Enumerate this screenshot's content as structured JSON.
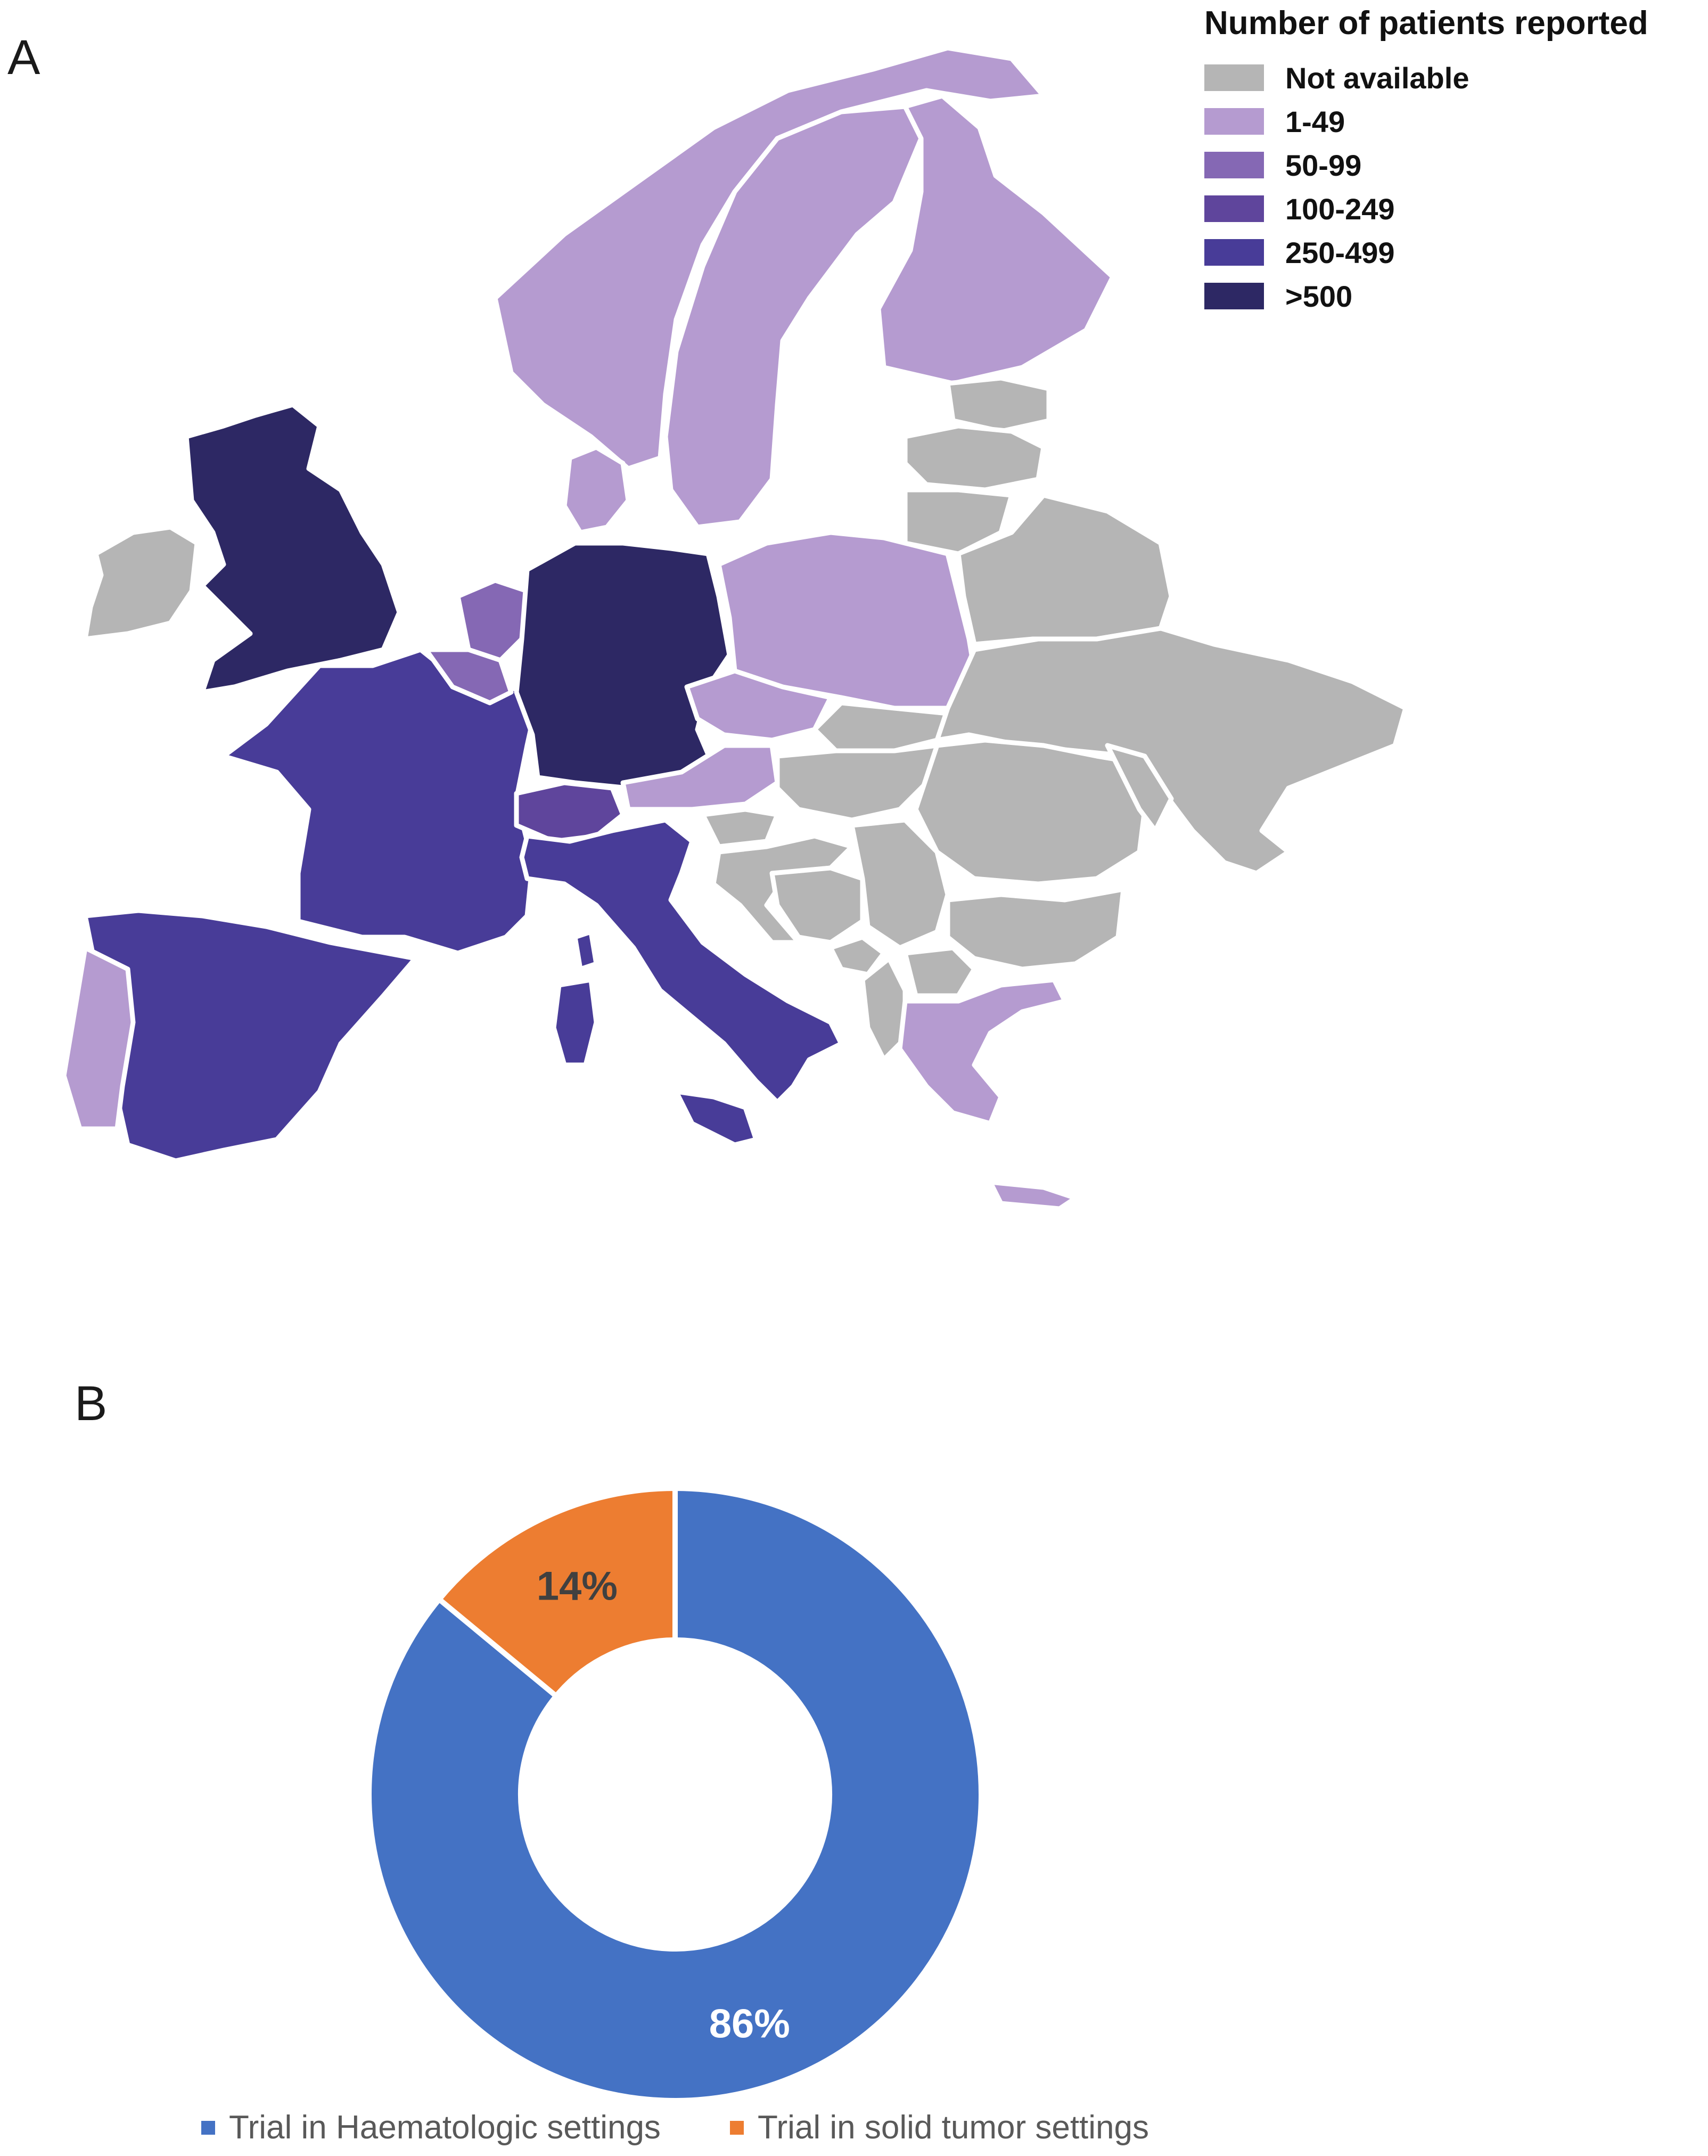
{
  "panel_a": {
    "letter": "A",
    "legend": {
      "title": "Number of patients reported",
      "items": [
        {
          "label": "Not available",
          "color": "#b5b5b5"
        },
        {
          "label": "1-49",
          "color": "#b59bd0"
        },
        {
          "label": "50-99",
          "color": "#8568b4"
        },
        {
          "label": "100-249",
          "color": "#5f459c"
        },
        {
          "label": "250-499",
          "color": "#483c98"
        },
        {
          "label": ">500",
          "color": "#2d2864"
        }
      ]
    }
  },
  "panel_b": {
    "letter": "B",
    "chart_data": {
      "type": "pie",
      "subtype": "donut",
      "categories": [
        "Trial in Haematologic settings",
        "Trial in solid tumor settings"
      ],
      "values": [
        86,
        14
      ],
      "unit": "%",
      "data_labels": [
        "86%",
        "14%"
      ],
      "colors": [
        "#4472c4",
        "#ed7d31"
      ],
      "legend": "bottom",
      "title": ""
    }
  }
}
